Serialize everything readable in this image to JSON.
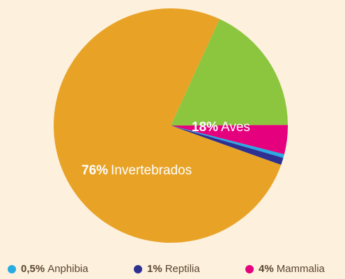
{
  "chart_data": {
    "type": "pie",
    "categories": [
      "Aves",
      "Mammalia",
      "Anphibia",
      "Reptilia",
      "Invertebrados"
    ],
    "values": [
      18,
      4,
      0.5,
      1,
      76
    ],
    "value_labels": [
      "18%",
      "4%",
      "0,5%",
      "1%",
      "76%"
    ],
    "colors": [
      "#8cc63f",
      "#e5007e",
      "#29abe2",
      "#2e3192",
      "#e8a327"
    ]
  }
}
